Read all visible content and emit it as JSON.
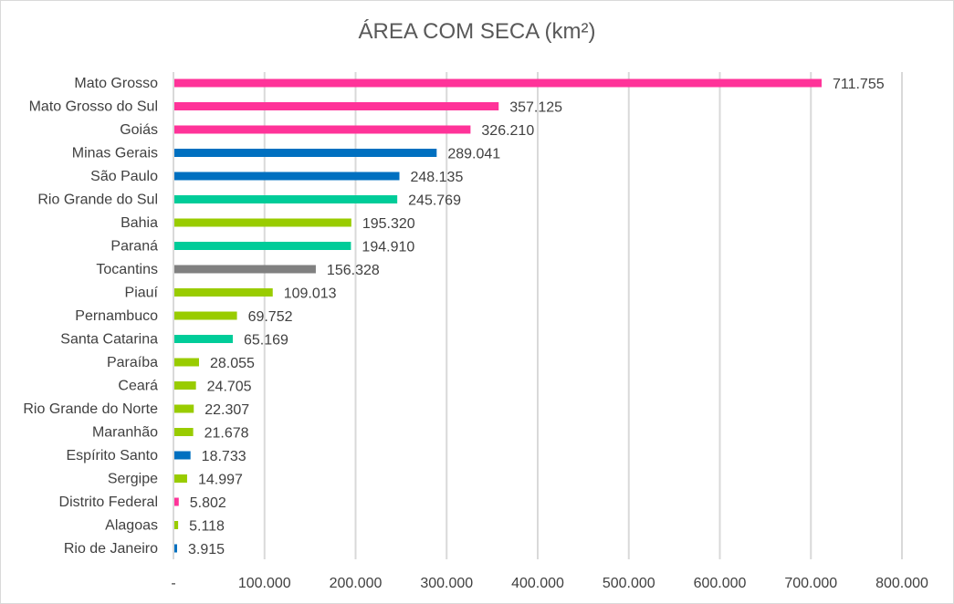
{
  "chart_data": {
    "type": "bar",
    "orientation": "horizontal",
    "title": "ÁREA COM SECA (km²)",
    "categories": [
      "Mato Grosso",
      "Mato Grosso do Sul",
      "Goiás",
      "Minas Gerais",
      "São Paulo",
      "Rio Grande do Sul",
      "Bahia",
      "Paraná",
      "Tocantins",
      "Piauí",
      "Pernambuco",
      "Santa Catarina",
      "Paraíba",
      "Ceará",
      "Rio Grande do Norte",
      "Maranhão",
      "Espírito Santo",
      "Sergipe",
      "Distrito Federal",
      "Alagoas",
      "Rio de Janeiro"
    ],
    "values": [
      711755,
      357125,
      326210,
      289041,
      248135,
      245769,
      195320,
      194910,
      156328,
      109013,
      69752,
      65169,
      28055,
      24705,
      22307,
      21678,
      18733,
      14997,
      5802,
      5118,
      3915
    ],
    "data_labels": [
      "711.755",
      "357.125",
      "326.210",
      "289.041",
      "248.135",
      "245.769",
      "195.320",
      "194.910",
      "156.328",
      "109.013",
      "69.752",
      "65.169",
      "28.055",
      "24.705",
      "22.307",
      "21.678",
      "18.733",
      "14.997",
      "5.802",
      "5.118",
      "3.915"
    ],
    "colors": [
      "#FF3399",
      "#FF3399",
      "#FF3399",
      "#0070C0",
      "#0070C0",
      "#00CC99",
      "#99CC00",
      "#00CC99",
      "#808080",
      "#99CC00",
      "#99CC00",
      "#00CC99",
      "#99CC00",
      "#99CC00",
      "#99CC00",
      "#99CC00",
      "#0070C0",
      "#99CC00",
      "#FF3399",
      "#99CC00",
      "#0070C0"
    ],
    "xlim": [
      0,
      800000
    ],
    "xticks": [
      0,
      100000,
      200000,
      300000,
      400000,
      500000,
      600000,
      700000,
      800000
    ],
    "xtick_labels": [
      "-",
      "100.000",
      "200.000",
      "300.000",
      "400.000",
      "500.000",
      "600.000",
      "700.000",
      "800.000"
    ],
    "grid": "vertical",
    "legend": "none",
    "xlabel": "",
    "ylabel": ""
  }
}
